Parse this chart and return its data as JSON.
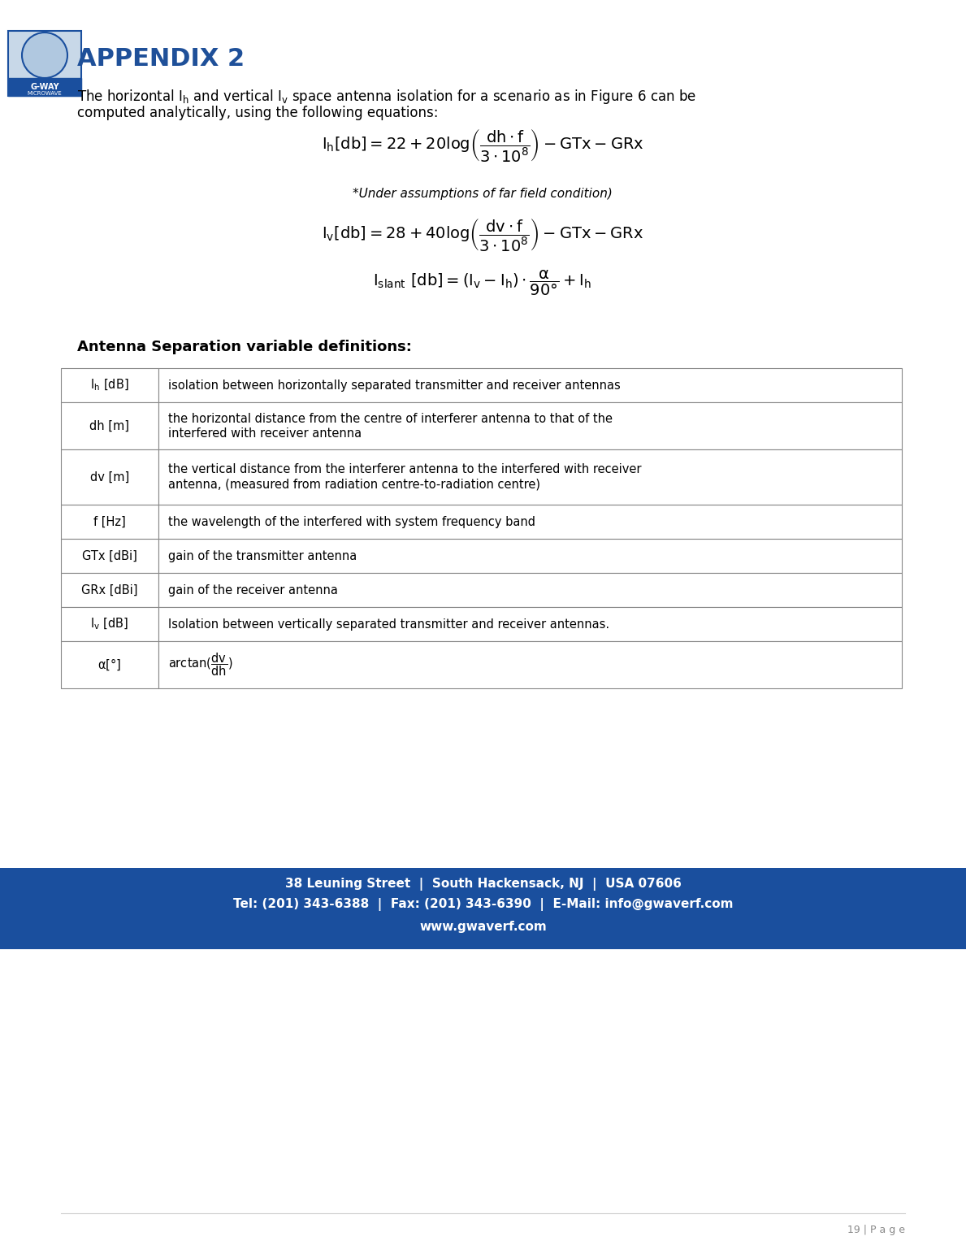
{
  "page_bg": "#ffffff",
  "header_logo_placeholder": true,
  "appendix_title": "APPENDIX 2",
  "appendix_title_color": "#1F5099",
  "intro_text_line1": "The horizontal I",
  "intro_text_line2": " and vertical I",
  "intro_text_line3": " space antenna isolation for a scenario as in Figure 6 can be",
  "intro_text_line4": "computed analytically, using the following equations:",
  "equation1": "$\\mathrm{I_h[db] = 22 + 20log\\left(\\dfrac{dh \\cdot f}{3 \\cdot 10^8}\\right) - GTx - GRx}$",
  "assumption_text": "*Under assumptions of far field condition)",
  "equation2": "$\\mathrm{I_v[db] = 28 + 40log\\left(\\dfrac{dv \\cdot f}{3 \\cdot 10^8}\\right) - GTx - GRx}$",
  "equation3": "$\\mathrm{I_{slant}\\ [db] = (I_v - I_h) \\cdot \\dfrac{\\alpha}{90°} + I_h}$",
  "table_title": "Antenna Separation variable definitions:",
  "table_rows": [
    [
      "$\\mathrm{I_h\\ [dB]}$",
      "isolation between horizontally separated transmitter and receiver antennas"
    ],
    [
      "dh [m]",
      "the horizontal distance from the centre of interferer antenna to that of the\ninterfered with receiver antenna"
    ],
    [
      "dv [m]",
      "the vertical distance from the interferer antenna to the interfered with receiver\nantenna, (measured from radiation centre-to-radiation centre)"
    ],
    [
      "f [Hz]",
      "the wavelength of the interfered with system frequency band"
    ],
    [
      "GTx [dBi]",
      "gain of the transmitter antenna"
    ],
    [
      "GRx [dBi]",
      "gain of the receiver antenna"
    ],
    [
      "$\\mathrm{I_v\\ [dB]}$",
      "Isolation between vertically separated transmitter and receiver antennas."
    ],
    [
      "$\\mathrm{\\alpha[°]}$",
      "$\\mathrm{arctan(\\dfrac{dv}{dh})}$"
    ]
  ],
  "footer_bg": "#1A4F9E",
  "footer_line1": "38 Leuning Street  |  South Hackensack, NJ  |  USA 07606",
  "footer_line2": "Tel: (201) 343-6388  |  Fax: (201) 343-6390  |  E-Mail: info@gwaverf.com",
  "footer_line3": "www.gwaverf.com",
  "footer_text_color": "#ffffff",
  "page_number": "19 | P a g e"
}
